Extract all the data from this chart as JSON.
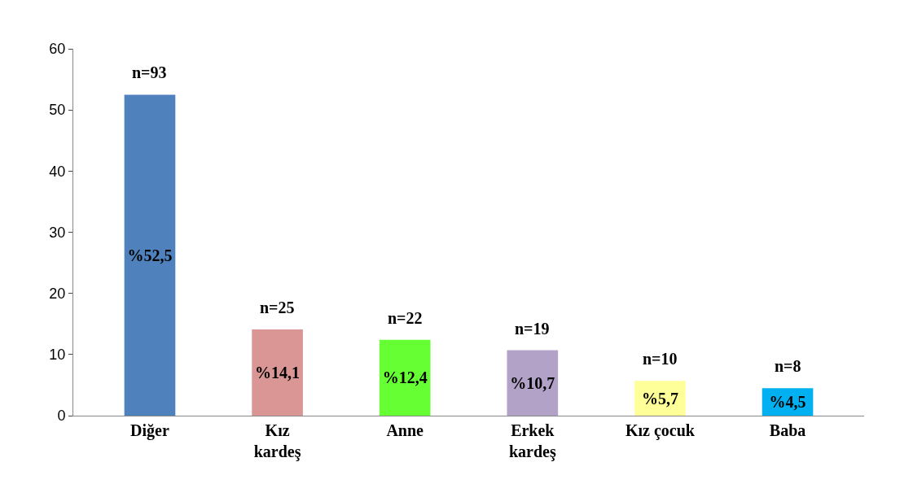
{
  "chart_data": {
    "type": "bar",
    "categories": [
      "Diğer",
      "Kız\nkardeş",
      "Anne",
      "Erkek\nkardeş",
      "Kız çocuk",
      "Baba"
    ],
    "values": [
      52.5,
      14.1,
      12.4,
      10.7,
      5.7,
      4.5
    ],
    "colors": [
      "#4f81bd",
      "#d99694",
      "#66ff33",
      "#b3a2c7",
      "#ffff99",
      "#00b0f0"
    ],
    "value_labels": [
      "%52,5",
      "%14,1",
      "%12,4",
      "%10,7",
      "%5,7",
      "%4,5"
    ],
    "annotations": [
      {
        "text": "n=93",
        "x": "Diğer",
        "y": 52.5
      },
      {
        "text": "n=25",
        "x": "Kız\nkardeş",
        "y": 14.1
      },
      {
        "text": "n=22",
        "x": "Anne",
        "y": 12.4
      },
      {
        "text": "n=19",
        "x": "Erkek\nkardeş",
        "y": 10.7
      },
      {
        "text": "n=10",
        "x": "Kız çocuk",
        "y": 5.7
      },
      {
        "text": "n=8",
        "x": "Baba",
        "y": 4.5
      }
    ],
    "ylim": [
      0,
      60
    ],
    "yticks": [
      0,
      10,
      20,
      30,
      40,
      50,
      60
    ],
    "legend": false
  }
}
